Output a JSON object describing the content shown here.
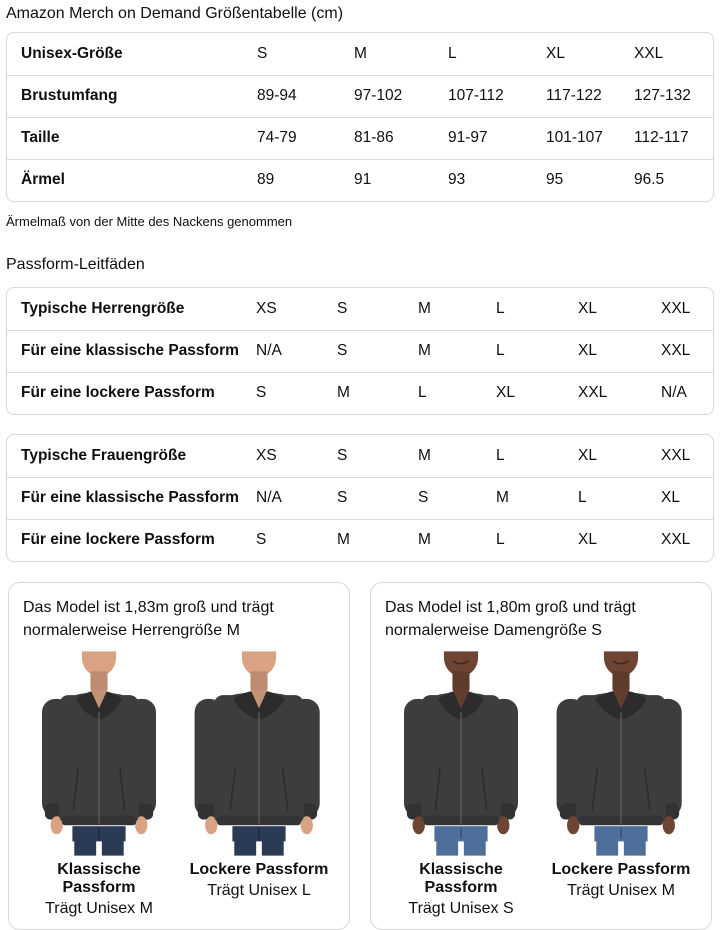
{
  "page": {
    "title": "Amazon Merch on Demand Größentabelle (cm)"
  },
  "size_table": {
    "header": {
      "label": "Unisex-Größe",
      "sizes": [
        "S",
        "M",
        "L",
        "XL",
        "XXL"
      ]
    },
    "rows": [
      {
        "label": "Brustumfang",
        "values": [
          "89-94",
          "97-102",
          "107-112",
          "117-122",
          "127-132"
        ]
      },
      {
        "label": "Taille",
        "values": [
          "74-79",
          "81-86",
          "91-97",
          "101-107",
          "112-117"
        ]
      },
      {
        "label": "Ärmel",
        "values": [
          "89",
          "91",
          "93",
          "95",
          "96.5"
        ]
      }
    ],
    "footnote": "Ärmelmaß von der Mitte des Nackens genommen"
  },
  "fit_guides": {
    "heading": "Passform-Leitfäden",
    "tables": [
      {
        "header": {
          "label": "Typische Herrengröße",
          "sizes": [
            "XS",
            "S",
            "M",
            "L",
            "XL",
            "XXL"
          ]
        },
        "rows": [
          {
            "label": "Für eine klassische Passform",
            "values": [
              "N/A",
              "S",
              "M",
              "L",
              "XL",
              "XXL"
            ]
          },
          {
            "label": "Für eine lockere Passform",
            "values": [
              "S",
              "M",
              "L",
              "XL",
              "XXL",
              "N/A"
            ]
          }
        ]
      },
      {
        "header": {
          "label": "Typische Frauengröße",
          "sizes": [
            "XS",
            "S",
            "M",
            "L",
            "XL",
            "XXL"
          ]
        },
        "rows": [
          {
            "label": "Für eine klassische Passform",
            "values": [
              "N/A",
              "S",
              "S",
              "M",
              "L",
              "XL"
            ]
          },
          {
            "label": "Für eine lockere Passform",
            "values": [
              "S",
              "M",
              "M",
              "L",
              "XL",
              "XXL"
            ]
          }
        ]
      }
    ]
  },
  "model_cards": [
    {
      "description": "Das Model ist 1,83m groß und trägt normalerweise Herrengröße M",
      "photos": [
        {
          "fit_label": "Klassische Passform",
          "size_label": "Trägt Unisex M"
        },
        {
          "fit_label": "Lockere Passform",
          "size_label": "Trägt Unisex L"
        }
      ]
    },
    {
      "description": "Das Model ist 1,80m groß und trägt normalerweise Damengröße S",
      "photos": [
        {
          "fit_label": "Klassische Passform",
          "size_label": "Trägt Unisex S"
        },
        {
          "fit_label": "Lockere Passform",
          "size_label": "Trägt Unisex M"
        }
      ]
    }
  ],
  "colors": {
    "text": "#0f1111",
    "border": "#d5d9d9",
    "hoodie": "#3d3d3f",
    "mens_skin": "#d9a383",
    "womens_skin": "#6e4533",
    "mens_jeans": "#2b3b55",
    "womens_jeans": "#4f6f9b"
  }
}
